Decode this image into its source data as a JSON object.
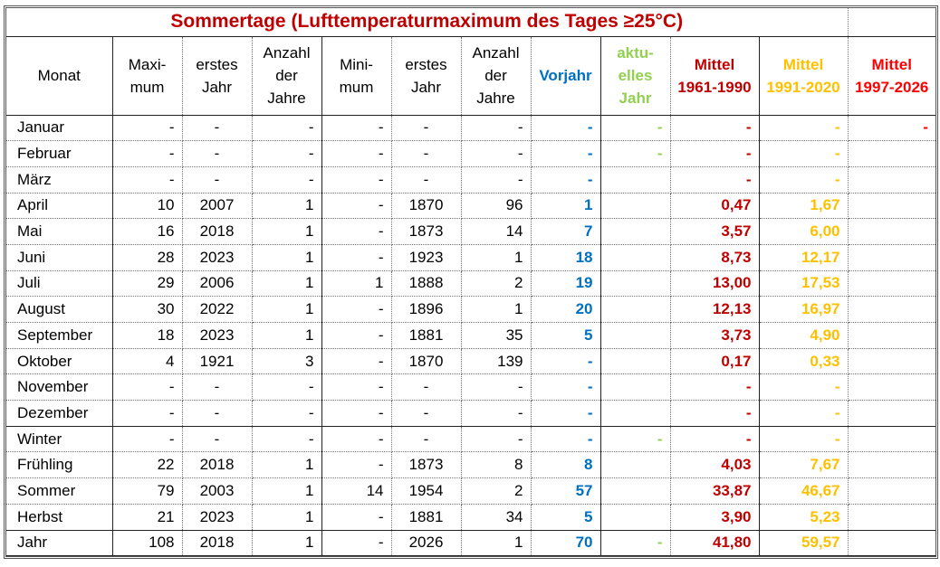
{
  "title": "Sommertage (Lufttemperaturmaximum des Tages ≥25°C)",
  "headers": [
    "Monat",
    "Maxi-\nmum",
    "erstes\nJahr",
    "Anzahl\nder\nJahre",
    "Mini-\nmum",
    "erstes\nJahr",
    "Anzahl\nder\nJahre",
    "Vorjahr",
    "aktu-\nelles\nJahr",
    "Mittel\n1961-1990",
    "Mittel\n1991-2020",
    "Mittel\n1997-2026"
  ],
  "colors": {
    "vorjahr": "#0070C0",
    "aktuell": "#92D050",
    "m1961": "#C00000",
    "m1991": "#FFC000",
    "m1997": "#FF0000"
  },
  "rows": [
    [
      "Januar",
      "-",
      "-",
      "-",
      "-",
      "-",
      "-",
      "-",
      "-",
      "-",
      "-",
      "-"
    ],
    [
      "Februar",
      "-",
      "-",
      "-",
      "-",
      "-",
      "-",
      "-",
      "-",
      "-",
      "-",
      ""
    ],
    [
      "März",
      "-",
      "-",
      "-",
      "-",
      "-",
      "-",
      "-",
      "",
      "-",
      "-",
      ""
    ],
    [
      "April",
      "10",
      "2007",
      "1",
      "-",
      "1870",
      "96",
      "1",
      "",
      "0,47",
      "1,67",
      ""
    ],
    [
      "Mai",
      "16",
      "2018",
      "1",
      "-",
      "1873",
      "14",
      "7",
      "",
      "3,57",
      "6,00",
      ""
    ],
    [
      "Juni",
      "28",
      "2023",
      "1",
      "-",
      "1923",
      "1",
      "18",
      "",
      "8,73",
      "12,17",
      ""
    ],
    [
      "Juli",
      "29",
      "2006",
      "1",
      "1",
      "1888",
      "2",
      "19",
      "",
      "13,00",
      "17,53",
      ""
    ],
    [
      "August",
      "30",
      "2022",
      "1",
      "-",
      "1896",
      "1",
      "20",
      "",
      "12,13",
      "16,97",
      ""
    ],
    [
      "September",
      "18",
      "2023",
      "1",
      "-",
      "1881",
      "35",
      "5",
      "",
      "3,73",
      "4,90",
      ""
    ],
    [
      "Oktober",
      "4",
      "1921",
      "3",
      "-",
      "1870",
      "139",
      "-",
      "",
      "0,17",
      "0,33",
      ""
    ],
    [
      "November",
      "-",
      "-",
      "-",
      "-",
      "-",
      "-",
      "-",
      "",
      "-",
      "-",
      ""
    ],
    [
      "Dezember",
      "-",
      "-",
      "-",
      "-",
      "-",
      "-",
      "-",
      "",
      "-",
      "-",
      ""
    ],
    [
      "Winter",
      "-",
      "-",
      "-",
      "-",
      "-",
      "-",
      "-",
      "-",
      "-",
      "-",
      ""
    ],
    [
      "Frühling",
      "22",
      "2018",
      "1",
      "-",
      "1873",
      "8",
      "8",
      "",
      "4,03",
      "7,67",
      ""
    ],
    [
      "Sommer",
      "79",
      "2003",
      "1",
      "14",
      "1954",
      "2",
      "57",
      "",
      "33,87",
      "46,67",
      ""
    ],
    [
      "Herbst",
      "21",
      "2023",
      "1",
      "-",
      "1881",
      "34",
      "5",
      "",
      "3,90",
      "5,23",
      ""
    ],
    [
      "Jahr",
      "108",
      "2018",
      "1",
      "-",
      "2026",
      "1",
      "70",
      "-",
      "41,80",
      "59,57",
      ""
    ]
  ]
}
